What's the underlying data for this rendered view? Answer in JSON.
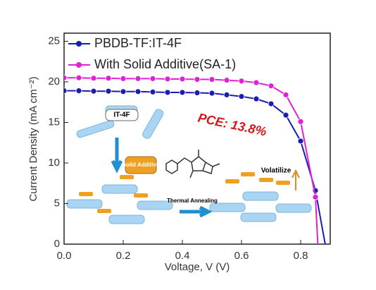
{
  "chart_data": {
    "type": "line",
    "x_label": "Voltage, V (V)",
    "y_label": "Current Density (mA cm⁻²)",
    "xlim": [
      0,
      0.9
    ],
    "ylim": [
      0,
      26
    ],
    "xticks": [
      {
        "value": 0,
        "label": "0.0"
      },
      0.2,
      0.4,
      0.6,
      0.8
    ],
    "yticks": [
      0,
      5,
      10,
      15,
      20,
      25
    ],
    "legend": "upper left",
    "series": [
      {
        "name": "PBDB-TF:IT-4F",
        "color": "#1c1cb0",
        "x": [
          0,
          0.05,
          0.1,
          0.15,
          0.2,
          0.25,
          0.3,
          0.35,
          0.4,
          0.45,
          0.5,
          0.55,
          0.6,
          0.65,
          0.7,
          0.75,
          0.8,
          0.85,
          0.883
        ],
        "values": [
          18.9,
          18.9,
          18.85,
          18.85,
          18.8,
          18.8,
          18.75,
          18.7,
          18.7,
          18.65,
          18.6,
          18.4,
          18.2,
          17.9,
          17.3,
          15.9,
          12.7,
          6.6,
          0
        ]
      },
      {
        "name": "With Solid Additive(SA-1)",
        "color": "#e022d4",
        "x": [
          0,
          0.05,
          0.1,
          0.15,
          0.2,
          0.25,
          0.3,
          0.35,
          0.4,
          0.45,
          0.5,
          0.55,
          0.6,
          0.65,
          0.7,
          0.75,
          0.8,
          0.85,
          0.858
        ],
        "values": [
          20.5,
          20.5,
          20.45,
          20.45,
          20.4,
          20.4,
          20.4,
          20.35,
          20.35,
          20.3,
          20.3,
          20.2,
          20.1,
          19.9,
          19.5,
          18.4,
          15.1,
          5.8,
          0
        ]
      }
    ],
    "annotations": [
      "PCE: 13.8%",
      "IT-4F",
      "Solid Additive",
      "Thermal Annealing",
      "Volatilize"
    ]
  }
}
